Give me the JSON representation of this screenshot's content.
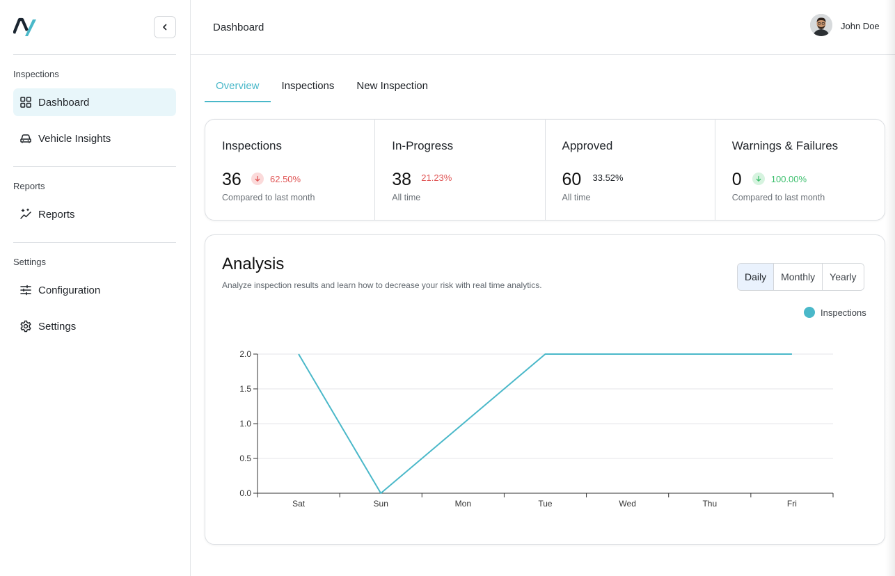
{
  "sidebar": {
    "collapse_icon": "chevron-left-icon",
    "sections": [
      {
        "title": "Inspections"
      },
      {
        "title": "Reports"
      },
      {
        "title": "Settings"
      }
    ],
    "items": [
      {
        "label": "Dashboard",
        "icon": "grid-icon",
        "active": true
      },
      {
        "label": "Vehicle Insights",
        "icon": "car-icon"
      },
      {
        "label": "Reports",
        "icon": "sparkle-chart-icon"
      },
      {
        "label": "Configuration",
        "icon": "sliders-icon"
      },
      {
        "label": "Settings",
        "icon": "gear-icon"
      }
    ]
  },
  "header": {
    "title": "Dashboard",
    "user_name": "John Doe"
  },
  "tabs": [
    {
      "label": "Overview",
      "active": true
    },
    {
      "label": "Inspections"
    },
    {
      "label": "New Inspection"
    }
  ],
  "stats": [
    {
      "label": "Inspections",
      "value": "36",
      "change": "62.50%",
      "sub": "Compared to last month"
    },
    {
      "label": "In-Progress",
      "value": "38",
      "change": "21.23%",
      "sub": "All time"
    },
    {
      "label": "Approved",
      "value": "60",
      "change": "33.52%",
      "sub": "All time"
    },
    {
      "label": "Warnings & Failures",
      "value": "0",
      "change": "100.00%",
      "sub": "Compared to last month"
    }
  ],
  "analysis": {
    "title": "Analysis",
    "subtitle": "Analyze inspection results and learn how to decrease your risk with real time analytics.",
    "periods": [
      "Daily",
      "Monthly",
      "Yearly"
    ],
    "active_period": "Daily"
  },
  "colors": {
    "accent": "#4ab8c9",
    "negative": "#e05555",
    "positive": "#3cbf6d"
  },
  "chart_data": {
    "type": "line",
    "categories": [
      "Sat",
      "Sun",
      "Mon",
      "Tue",
      "Wed",
      "Thu",
      "Fri"
    ],
    "series": [
      {
        "name": "Inspections",
        "values": [
          2,
          0,
          1,
          2,
          2,
          2,
          2
        ]
      }
    ],
    "ylim": [
      0,
      2
    ],
    "yticks": [
      "0.0",
      "0.5",
      "1.0",
      "1.5",
      "2.0"
    ],
    "grid": true,
    "legend": "top-right"
  }
}
